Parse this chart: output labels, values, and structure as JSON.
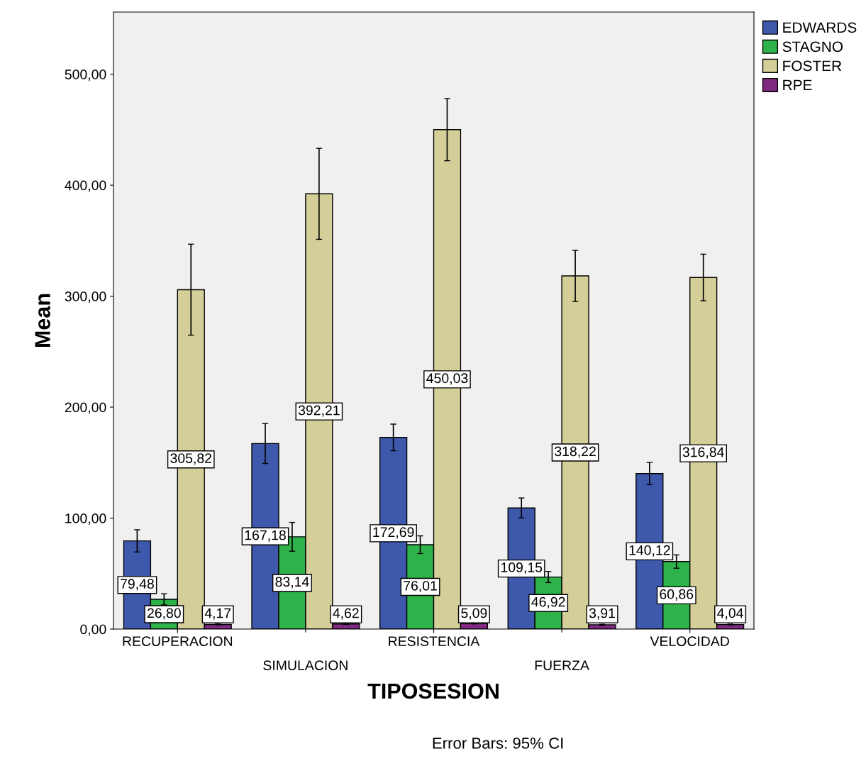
{
  "chart_data": {
    "type": "bar",
    "xlabel": "TIPOSESION",
    "ylabel": "Mean",
    "categories": [
      "RECUPERACION",
      "SIMULACION",
      "RESISTENCIA",
      "FUERZA",
      "VELOCIDAD"
    ],
    "series": [
      {
        "name": "EDWARDS",
        "color": "#3e58ac",
        "values": [
          79.48,
          167.18,
          172.69,
          109.15,
          140.12
        ],
        "errors": [
          10,
          18,
          12,
          9,
          10
        ],
        "value_labels": [
          "79,48",
          "167,18",
          "172,69",
          "109,15",
          "140,12"
        ]
      },
      {
        "name": "STAGNO",
        "color": "#2db34a",
        "values": [
          26.8,
          83.14,
          76.01,
          46.92,
          60.86
        ],
        "errors": [
          5,
          13,
          8,
          5,
          6
        ],
        "value_labels": [
          "26,80",
          "83,14",
          "76,01",
          "46,92",
          "60,86"
        ]
      },
      {
        "name": "FOSTER",
        "color": "#d4ce98",
        "values": [
          305.82,
          392.21,
          450.03,
          318.22,
          316.84
        ],
        "errors": [
          41,
          41,
          28,
          23,
          21
        ],
        "value_labels": [
          "305,82",
          "392,21",
          "450,03",
          "318,22",
          "316,84"
        ]
      },
      {
        "name": "RPE",
        "color": "#7f2a80",
        "values": [
          4.17,
          4.62,
          5.09,
          3.91,
          4.04
        ],
        "errors": [
          0.4,
          0.4,
          0.4,
          0.4,
          0.4
        ],
        "value_labels": [
          "4,17",
          "4,62",
          "5,09",
          "3,91",
          "4,04"
        ]
      }
    ],
    "ylim": [
      0,
      556
    ],
    "yticks": [
      {
        "value": 0,
        "label": "0,00"
      },
      {
        "value": 100,
        "label": "100,00"
      },
      {
        "value": 200,
        "label": "200,00"
      },
      {
        "value": 300,
        "label": "300,00"
      },
      {
        "value": 400,
        "label": "400,00"
      },
      {
        "value": 500,
        "label": "500,00"
      }
    ],
    "grid": false,
    "legend": "top right",
    "annotations": [
      "Error Bars: 95% CI"
    ]
  }
}
